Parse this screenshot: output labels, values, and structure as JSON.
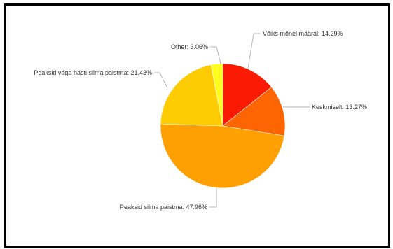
{
  "chart_data": {
    "type": "pie",
    "title": "",
    "legend": "none",
    "slices": [
      {
        "label": "Võiks mõnel määral: 14.29%",
        "category": "Võiks mõnel määral",
        "value": 14.29,
        "color": "#fb1a02"
      },
      {
        "label": "Keskmiselt: 13.27%",
        "category": "Keskmiselt",
        "value": 13.27,
        "color": "#fd6502"
      },
      {
        "label": "Peaksid silma paistma: 47.96%",
        "category": "Peaksid silma paistma",
        "value": 47.96,
        "color": "#fe9f02"
      },
      {
        "label": "Peaksid väga hästi silma paistma: 21.43%",
        "category": "Peaksid väga hästi silma paistma",
        "value": 21.43,
        "color": "#fecc02"
      },
      {
        "label": "Other: 3.06%",
        "category": "Other",
        "value": 3.06,
        "color": "#fefe20"
      }
    ]
  }
}
